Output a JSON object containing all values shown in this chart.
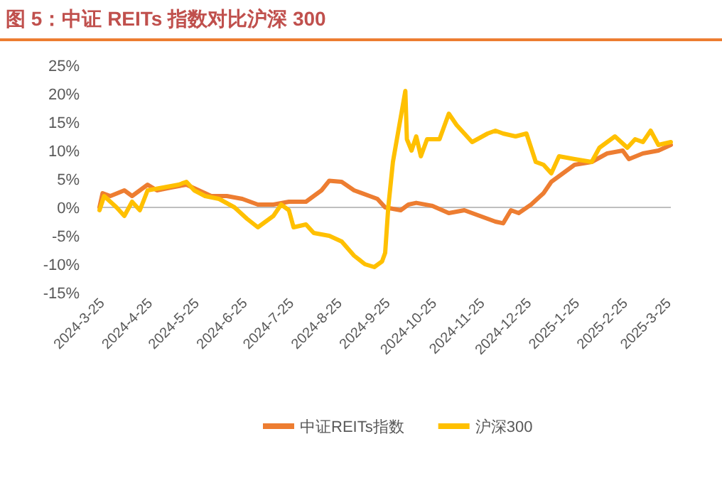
{
  "chart_data": {
    "type": "line",
    "title": "图 5：中证 REITs 指数对比沪深 300",
    "xlim": [
      "2024-03-25",
      "2025-03-28"
    ],
    "xticks": [
      {
        "value": "2024-03-25",
        "label": "2024-3-25"
      },
      {
        "value": "2024-04-25",
        "label": "2024-4-25"
      },
      {
        "value": "2024-05-25",
        "label": "2024-5-25"
      },
      {
        "value": "2024-06-25",
        "label": "2024-6-25"
      },
      {
        "value": "2024-07-25",
        "label": "2024-7-25"
      },
      {
        "value": "2024-08-25",
        "label": "2024-8-25"
      },
      {
        "value": "2024-09-25",
        "label": "2024-9-25"
      },
      {
        "value": "2024-10-25",
        "label": "2024-10-25"
      },
      {
        "value": "2024-11-25",
        "label": "2024-11-25"
      },
      {
        "value": "2024-12-25",
        "label": "2024-12-25"
      },
      {
        "value": "2025-01-25",
        "label": "2025-1-25"
      },
      {
        "value": "2025-02-25",
        "label": "2025-2-25"
      },
      {
        "value": "2025-03-25",
        "label": "2025-3-25"
      }
    ],
    "ylim": [
      -15,
      25
    ],
    "yticks": [
      {
        "value": 25,
        "label": "25%"
      },
      {
        "value": 20,
        "label": "20%"
      },
      {
        "value": 15,
        "label": "15%"
      },
      {
        "value": 10,
        "label": "10%"
      },
      {
        "value": 5,
        "label": "5%"
      },
      {
        "value": 0,
        "label": "0%"
      },
      {
        "value": -5,
        "label": "-5%"
      },
      {
        "value": -10,
        "label": "-10%"
      },
      {
        "value": -15,
        "label": "-15%"
      }
    ],
    "grid": false,
    "legend": "bottom",
    "ref_lines": [
      {
        "axis": "y",
        "value": 0,
        "color": "#bfbfbf"
      }
    ],
    "series": [
      {
        "name": "中证REITs指数",
        "color": "#ed7d31",
        "x": [
          "2024-03-25",
          "2024-03-27",
          "2024-04-01",
          "2024-04-10",
          "2024-04-15",
          "2024-04-25",
          "2024-05-01",
          "2024-05-10",
          "2024-05-20",
          "2024-05-28",
          "2024-06-05",
          "2024-06-15",
          "2024-06-25",
          "2024-07-05",
          "2024-07-15",
          "2024-07-25",
          "2024-08-05",
          "2024-08-15",
          "2024-08-20",
          "2024-08-28",
          "2024-09-05",
          "2024-09-15",
          "2024-09-20",
          "2024-09-25",
          "2024-10-05",
          "2024-10-10",
          "2024-10-15",
          "2024-10-25",
          "2024-11-05",
          "2024-11-15",
          "2024-11-25",
          "2024-12-05",
          "2024-12-10",
          "2024-12-15",
          "2024-12-20",
          "2024-12-28",
          "2025-01-05",
          "2025-01-10",
          "2025-01-15",
          "2025-01-25",
          "2025-02-05",
          "2025-02-15",
          "2025-02-25",
          "2025-03-01",
          "2025-03-10",
          "2025-03-20",
          "2025-03-28"
        ],
        "values": [
          0,
          2.5,
          2,
          3,
          2,
          4,
          3,
          3.5,
          4,
          3,
          2,
          2,
          1.5,
          0.5,
          0.5,
          1,
          1,
          3,
          4.7,
          4.5,
          3,
          2,
          1.5,
          0,
          -0.5,
          0.5,
          0.8,
          0.3,
          -1,
          -0.5,
          -1.5,
          -2.5,
          -2.8,
          -0.5,
          -1,
          0.5,
          2.5,
          4.5,
          5.5,
          7.5,
          8,
          9.5,
          10,
          8.5,
          9.5,
          10,
          11
        ]
      },
      {
        "name": "沪深300",
        "color": "#ffc000",
        "x": [
          "2024-03-25",
          "2024-03-28",
          "2024-04-05",
          "2024-04-10",
          "2024-04-15",
          "2024-04-20",
          "2024-04-25",
          "2024-05-05",
          "2024-05-15",
          "2024-05-20",
          "2024-05-25",
          "2024-06-01",
          "2024-06-10",
          "2024-06-20",
          "2024-06-28",
          "2024-07-05",
          "2024-07-15",
          "2024-07-20",
          "2024-07-25",
          "2024-07-28",
          "2024-08-05",
          "2024-08-10",
          "2024-08-20",
          "2024-08-28",
          "2024-09-05",
          "2024-09-12",
          "2024-09-18",
          "2024-09-23",
          "2024-09-25",
          "2024-09-27",
          "2024-09-30",
          "2024-10-08",
          "2024-10-09",
          "2024-10-12",
          "2024-10-15",
          "2024-10-18",
          "2024-10-22",
          "2024-10-30",
          "2024-11-05",
          "2024-11-10",
          "2024-11-15",
          "2024-11-20",
          "2024-11-30",
          "2024-12-05",
          "2024-12-10",
          "2024-12-18",
          "2024-12-25",
          "2024-12-31",
          "2025-01-05",
          "2025-01-10",
          "2025-01-15",
          "2025-01-25",
          "2025-02-05",
          "2025-02-10",
          "2025-02-15",
          "2025-02-20",
          "2025-02-28",
          "2025-03-05",
          "2025-03-10",
          "2025-03-15",
          "2025-03-20",
          "2025-03-28"
        ],
        "values": [
          -0.5,
          2,
          0,
          -1.5,
          1,
          -0.5,
          3,
          3.5,
          4,
          4.5,
          3,
          2,
          1.5,
          0,
          -2,
          -3.5,
          -1.5,
          0.5,
          -0.5,
          -3.5,
          -3,
          -4.5,
          -5,
          -6,
          -8.5,
          -10,
          -10.5,
          -9.5,
          -8,
          0,
          8,
          20.5,
          12,
          10,
          12.5,
          9,
          12,
          12,
          16.5,
          14.5,
          13,
          11.5,
          13,
          13.5,
          13,
          12.5,
          13,
          8,
          7.5,
          6,
          9,
          8.5,
          8,
          10.5,
          11.5,
          12.5,
          10.5,
          12,
          11.5,
          13.5,
          11,
          11.5
        ]
      }
    ]
  }
}
